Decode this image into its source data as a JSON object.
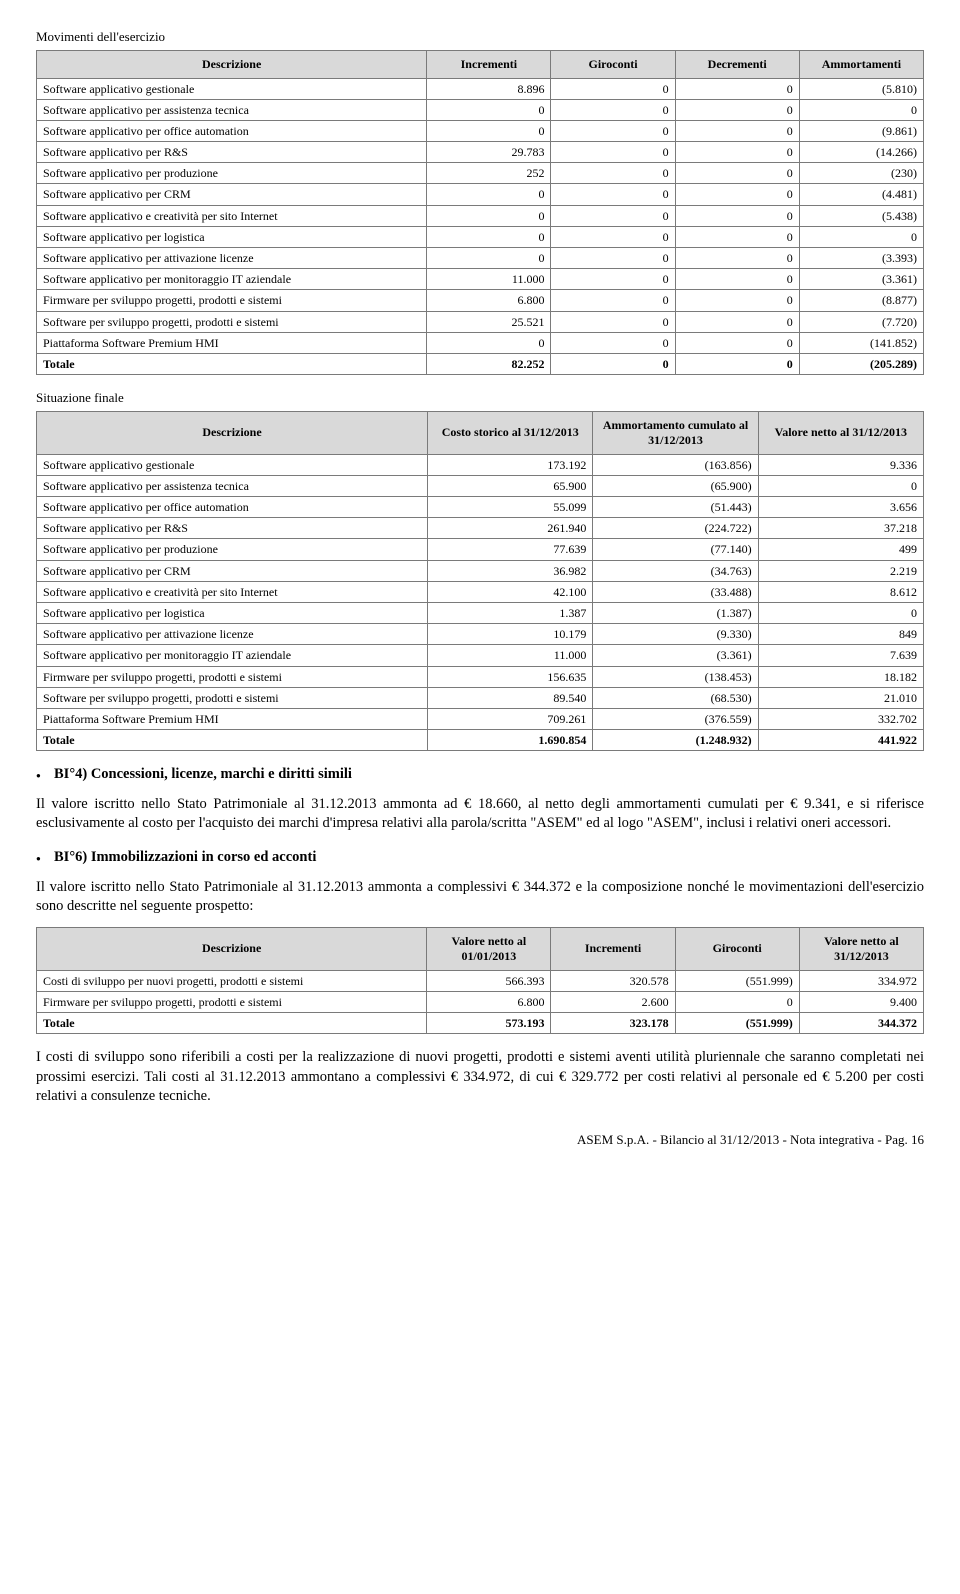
{
  "sections": {
    "movimenti_title": "Movimenti dell'esercizio",
    "situazione_title": "Situazione finale"
  },
  "table1": {
    "headers": [
      "Descrizione",
      "Incrementi",
      "Giroconti",
      "Decrementi",
      "Ammortamenti"
    ],
    "rows": [
      [
        "Software applicativo gestionale",
        "8.896",
        "0",
        "0",
        "(5.810)"
      ],
      [
        "Software applicativo per assistenza tecnica",
        "0",
        "0",
        "0",
        "0"
      ],
      [
        "Software applicativo per office automation",
        "0",
        "0",
        "0",
        "(9.861)"
      ],
      [
        "Software applicativo per R&S",
        "29.783",
        "0",
        "0",
        "(14.266)"
      ],
      [
        "Software applicativo per  produzione",
        "252",
        "0",
        "0",
        "(230)"
      ],
      [
        "Software applicativo per CRM",
        "0",
        "0",
        "0",
        "(4.481)"
      ],
      [
        "Software applicativo e creatività per sito Internet",
        "0",
        "0",
        "0",
        "(5.438)"
      ],
      [
        "Software applicativo per logistica",
        "0",
        "0",
        "0",
        "0"
      ],
      [
        "Software applicativo per attivazione licenze",
        "0",
        "0",
        "0",
        "(3.393)"
      ],
      [
        "Software applicativo per monitoraggio IT aziendale",
        "11.000",
        "0",
        "0",
        "(3.361)"
      ],
      [
        "Firmware per sviluppo progetti, prodotti e sistemi",
        "6.800",
        "0",
        "0",
        "(8.877)"
      ],
      [
        "Software per sviluppo progetti, prodotti e sistemi",
        "25.521",
        "0",
        "0",
        "(7.720)"
      ],
      [
        "Piattaforma Software Premium HMI",
        "0",
        "0",
        "0",
        "(141.852)"
      ]
    ],
    "total": [
      "Totale",
      "82.252",
      "0",
      "0",
      "(205.289)"
    ]
  },
  "table2": {
    "headers": [
      "Descrizione",
      "Costo storico al 31/12/2013",
      "Ammortamento cumulato al 31/12/2013",
      "Valore netto al 31/12/2013"
    ],
    "rows": [
      [
        "Software applicativo gestionale",
        "173.192",
        "(163.856)",
        "9.336"
      ],
      [
        "Software applicativo per assistenza tecnica",
        "65.900",
        "(65.900)",
        "0"
      ],
      [
        "Software applicativo per office automation",
        "55.099",
        "(51.443)",
        "3.656"
      ],
      [
        "Software applicativo per R&S",
        "261.940",
        "(224.722)",
        "37.218"
      ],
      [
        "Software applicativo per  produzione",
        "77.639",
        "(77.140)",
        "499"
      ],
      [
        "Software applicativo per CRM",
        "36.982",
        "(34.763)",
        "2.219"
      ],
      [
        "Software applicativo e creatività per sito Internet",
        "42.100",
        "(33.488)",
        "8.612"
      ],
      [
        "Software applicativo per logistica",
        "1.387",
        "(1.387)",
        "0"
      ],
      [
        "Software applicativo per attivazione licenze",
        "10.179",
        "(9.330)",
        "849"
      ],
      [
        "Software applicativo per monitoraggio IT aziendale",
        "11.000",
        "(3.361)",
        "7.639"
      ],
      [
        "Firmware per sviluppo progetti, prodotti e sistemi",
        "156.635",
        "(138.453)",
        "18.182"
      ],
      [
        "Software per sviluppo progetti, prodotti e sistemi",
        "89.540",
        "(68.530)",
        "21.010"
      ],
      [
        "Piattaforma Software Premium HMI",
        "709.261",
        "(376.559)",
        "332.702"
      ]
    ],
    "total": [
      "Totale",
      "1.690.854",
      "(1.248.932)",
      "441.922"
    ]
  },
  "bullets": {
    "bi4_title": "BI°4) Concessioni, licenze, marchi e diritti simili",
    "bi4_text": "Il valore iscritto nello Stato Patrimoniale al 31.12.2013 ammonta ad € 18.660, al netto degli ammortamenti cumulati per € 9.341, e si riferisce esclusivamente al costo per l'acquisto dei marchi d'impresa relativi alla parola/scritta \"ASEM\" ed al logo \"ASEM\", inclusi i relativi oneri accessori.",
    "bi6_title": "BI°6) Immobilizzazioni in corso ed acconti",
    "bi6_text": "Il valore iscritto nello Stato Patrimoniale al 31.12.2013 ammonta a complessivi € 344.372 e la composizione nonché le movimentazioni dell'esercizio sono descritte nel seguente prospetto:"
  },
  "table3": {
    "headers": [
      "Descrizione",
      "Valore netto al 01/01/2013",
      "Incrementi",
      "Giroconti",
      "Valore netto al 31/12/2013"
    ],
    "rows": [
      [
        "Costi di sviluppo per nuovi progetti, prodotti e sistemi",
        "566.393",
        "320.578",
        "(551.999)",
        "334.972"
      ],
      [
        "Firmware per sviluppo progetti, prodotti e sistemi",
        "6.800",
        "2.600",
        "0",
        "9.400"
      ]
    ],
    "total": [
      "Totale",
      "573.193",
      "323.178",
      "(551.999)",
      "344.372"
    ]
  },
  "closing_para": "I costi di sviluppo sono riferibili a costi per la realizzazione di nuovi progetti, prodotti e sistemi aventi utilità pluriennale che saranno completati nei prossimi esercizi. Tali costi al 31.12.2013 ammontano a complessivi € 334.972, di cui € 329.772 per costi relativi al personale ed € 5.200 per costi relativi a consulenze tecniche.",
  "footer": "ASEM S.p.A. - Bilancio al 31/12/2013 - Nota integrativa - Pag.  16",
  "colors": {
    "header_bg": "#d9d9d9",
    "border": "#7a7a7a",
    "text": "#000000",
    "bg": "#ffffff"
  }
}
